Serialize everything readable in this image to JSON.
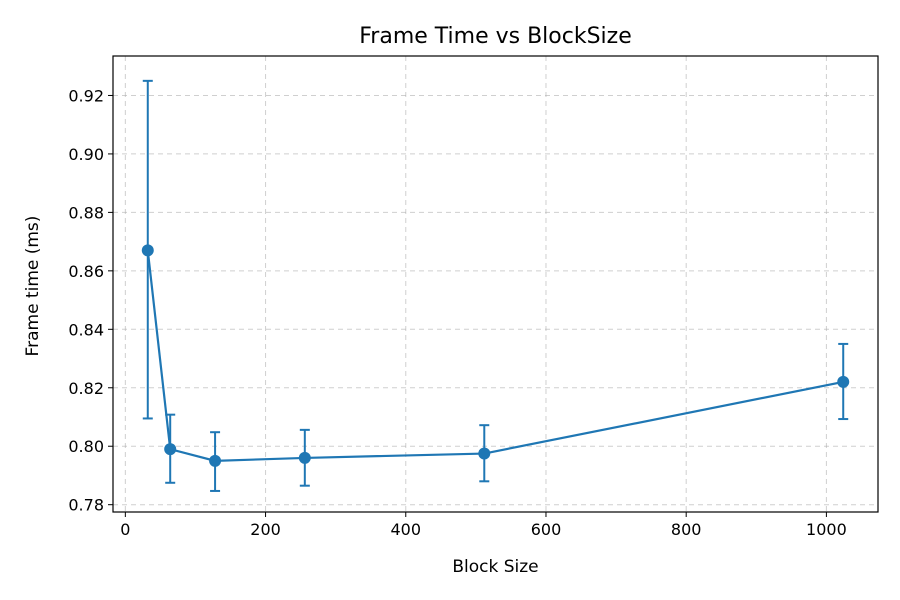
{
  "chart_data": {
    "type": "line",
    "title": "Frame Time vs BlockSize",
    "xlabel": "Block Size",
    "ylabel": "Frame time (ms)",
    "xlim": [
      -17.6,
      1073.6
    ],
    "ylim": [
      0.7775,
      0.9335
    ],
    "xticks": [
      0,
      200,
      400,
      600,
      800,
      1000
    ],
    "yticks": [
      0.78,
      0.8,
      0.82,
      0.84,
      0.86,
      0.88,
      0.9,
      0.92
    ],
    "xtick_labels": [
      "0",
      "200",
      "400",
      "600",
      "800",
      "1000"
    ],
    "ytick_labels": [
      "0.78",
      "0.80",
      "0.82",
      "0.84",
      "0.86",
      "0.88",
      "0.90",
      "0.92"
    ],
    "grid": true,
    "series": [
      {
        "color": "#1f77b4",
        "x": [
          32,
          64,
          128,
          256,
          512,
          1024
        ],
        "y": [
          0.867,
          0.799,
          0.795,
          0.796,
          0.7975,
          0.822
        ],
        "err_low": [
          0.8095,
          0.7875,
          0.7847,
          0.7865,
          0.788,
          0.8093
        ],
        "err_high": [
          0.925,
          0.8108,
          0.8048,
          0.8056,
          0.8072,
          0.835
        ]
      }
    ]
  }
}
